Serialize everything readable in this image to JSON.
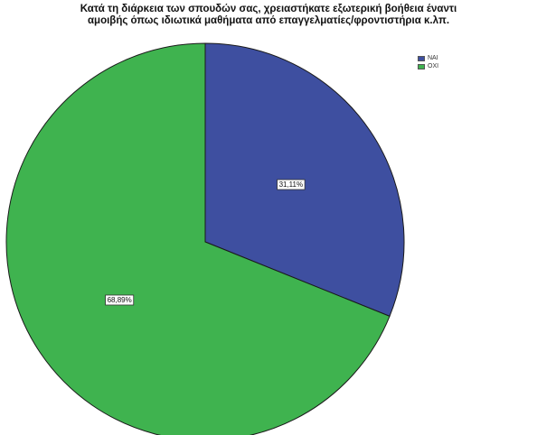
{
  "chart_data": {
    "type": "pie",
    "title_lines": [
      "Κατά τη διάρκεια των σπουδών σας, χρειαστήκατε εξωτερική βοήθεια έναντι",
      "αμοιβής όπως ιδιωτικά μαθήματα από επαγγελματίες/φροντιστήρια κ.λπ."
    ],
    "categories": [
      "ΝΑΙ",
      "ΟΧΙ"
    ],
    "values": [
      31.11,
      68.89
    ],
    "data_labels": [
      "31,11%",
      "68,89%"
    ],
    "colors": [
      "#3e4fa0",
      "#3fb34f"
    ],
    "legend_position": "top-right",
    "start_angle_deg": 0,
    "direction": "clockwise"
  }
}
